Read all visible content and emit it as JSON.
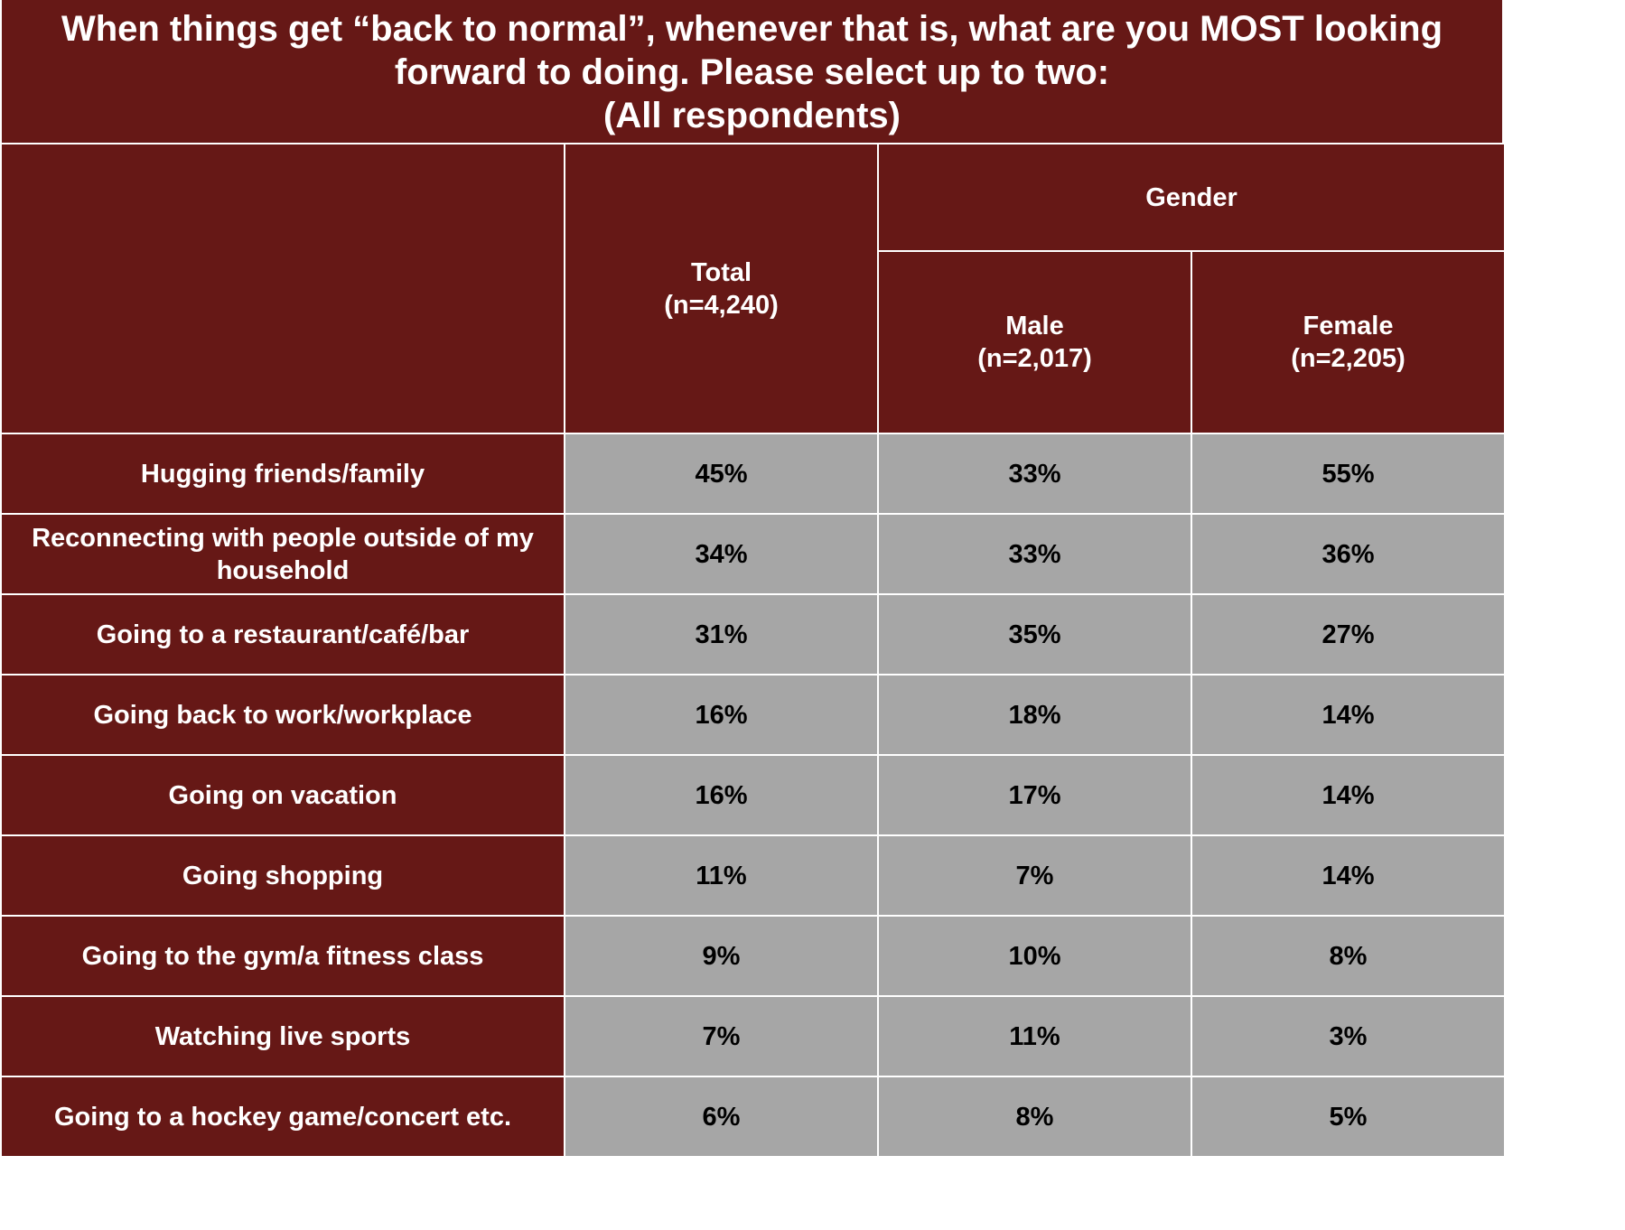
{
  "chart_data": {
    "type": "table",
    "title_lines": [
      "When things get “back to normal”, whenever that is, what are you MOST looking",
      "forward to doing. Please select up to two:",
      "(All respondents)"
    ],
    "group_header": "Gender",
    "columns": [
      {
        "label": "Total",
        "n": "(n=4,240)"
      },
      {
        "label": "Male",
        "n": "(n=2,017)"
      },
      {
        "label": "Female",
        "n": "(n=2,205)"
      }
    ],
    "rows": [
      {
        "label": "Hugging friends/family",
        "values": [
          "45%",
          "33%",
          "55%"
        ]
      },
      {
        "label": "Reconnecting with people outside of my household",
        "values": [
          "34%",
          "33%",
          "36%"
        ]
      },
      {
        "label": "Going to a restaurant/café/bar",
        "values": [
          "31%",
          "35%",
          "27%"
        ]
      },
      {
        "label": "Going back to work/workplace",
        "values": [
          "16%",
          "18%",
          "14%"
        ]
      },
      {
        "label": "Going on vacation",
        "values": [
          "16%",
          "17%",
          "14%"
        ]
      },
      {
        "label": "Going shopping",
        "values": [
          "11%",
          "7%",
          "14%"
        ]
      },
      {
        "label": "Going to the gym/a fitness class",
        "values": [
          "9%",
          "10%",
          "8%"
        ]
      },
      {
        "label": "Watching live sports",
        "values": [
          "7%",
          "11%",
          "3%"
        ]
      },
      {
        "label": "Going to a hockey game/concert etc.",
        "values": [
          "6%",
          "8%",
          "5%"
        ]
      }
    ]
  },
  "colors": {
    "header_bg": "#661816",
    "value_bg": "#a6a6a6",
    "header_text": "#ffffff",
    "value_text": "#000000"
  }
}
